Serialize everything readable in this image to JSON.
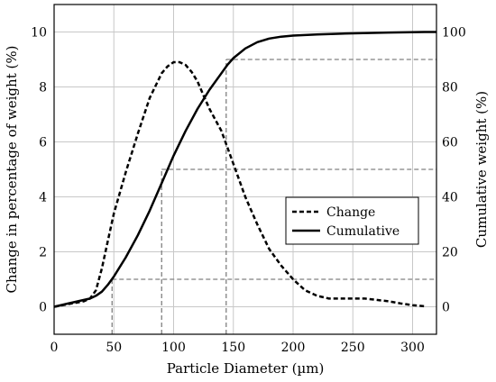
{
  "chart_data": {
    "type": "line",
    "title": "",
    "xlabel": "Particle Diameter (µm)",
    "ylabel": "Change in percentage of weight (%)",
    "y2label": "Cumulative weight (%)",
    "xlim": [
      0,
      320
    ],
    "ylim": [
      -1,
      11
    ],
    "y2lim": [
      -10,
      110
    ],
    "xticks": [
      "0",
      "50",
      "100",
      "150",
      "200",
      "250",
      "300"
    ],
    "yticks": [
      "0",
      "2",
      "4",
      "6",
      "8",
      "10"
    ],
    "y2ticks": [
      "0",
      "20",
      "40",
      "60",
      "80",
      "100"
    ],
    "grid": true,
    "legend_position": "center-right",
    "series": [
      {
        "name": "Change",
        "axis": "left",
        "style": "dashed",
        "x": [
          0,
          15,
          25,
          30,
          35,
          40,
          45,
          50,
          60,
          70,
          80,
          90,
          95,
          100,
          105,
          110,
          115,
          120,
          125,
          130,
          140,
          150,
          160,
          170,
          180,
          190,
          200,
          210,
          220,
          230,
          240,
          250,
          260,
          270,
          280,
          290,
          300,
          310
        ],
        "values": [
          0,
          0.12,
          0.2,
          0.3,
          0.6,
          1.4,
          2.4,
          3.4,
          4.9,
          6.3,
          7.6,
          8.5,
          8.75,
          8.9,
          8.9,
          8.8,
          8.55,
          8.2,
          7.7,
          7.2,
          6.4,
          5.2,
          4.0,
          3.0,
          2.1,
          1.5,
          1.0,
          0.6,
          0.4,
          0.3,
          0.3,
          0.3,
          0.3,
          0.25,
          0.2,
          0.12,
          0.06,
          0.02
        ]
      },
      {
        "name": "Cumulative",
        "axis": "right",
        "style": "solid",
        "x": [
          0,
          10,
          20,
          30,
          35,
          40,
          45,
          50,
          60,
          70,
          80,
          90,
          100,
          110,
          120,
          130,
          140,
          145,
          150,
          160,
          170,
          180,
          190,
          200,
          220,
          250,
          280,
          310,
          320
        ],
        "values": [
          0,
          1,
          2,
          3,
          4,
          5.5,
          8,
          11,
          18,
          26,
          35,
          45,
          55,
          64,
          72,
          79,
          85,
          88,
          90.5,
          94,
          96.3,
          97.6,
          98.3,
          98.7,
          99.1,
          99.5,
          99.8,
          100,
          100
        ]
      }
    ],
    "reference_lines": [
      {
        "x": 48.5,
        "cumulative": 10
      },
      {
        "x": 90,
        "cumulative": 50
      },
      {
        "x": 144,
        "cumulative": 90
      }
    ]
  }
}
